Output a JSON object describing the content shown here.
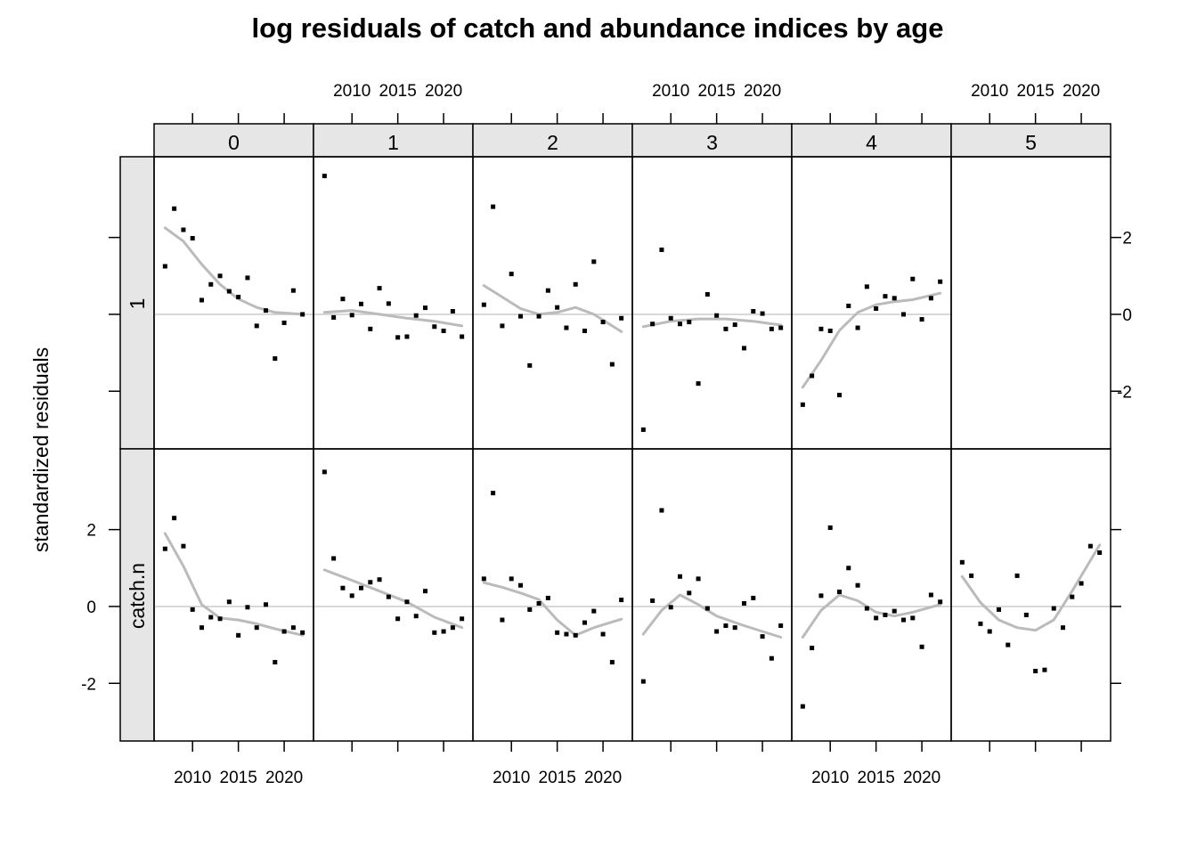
{
  "chart_data": {
    "type": "scatter",
    "title": "log residuals of catch and abundance indices by age",
    "xlabel": "",
    "ylabel": "standardized residuals",
    "xlim": [
      2005.8,
      2023.2
    ],
    "ylim": [
      -3.5,
      4.1
    ],
    "x_ticks": [
      2010,
      2015,
      2020
    ],
    "y_ticks": [
      -2,
      0,
      2
    ],
    "grid": false,
    "reference_line": 0,
    "ages": [
      "0",
      "1",
      "2",
      "3",
      "4",
      "5"
    ],
    "rows": [
      "1",
      "catch.n"
    ],
    "panels": [
      {
        "row": "1",
        "age": "0",
        "points": [
          [
            2007,
            1.25
          ],
          [
            2008,
            2.75
          ],
          [
            2009,
            2.2
          ],
          [
            2010,
            1.98
          ],
          [
            2011,
            0.37
          ],
          [
            2012,
            0.78
          ],
          [
            2013,
            1.0
          ],
          [
            2014,
            0.6
          ],
          [
            2015,
            0.45
          ],
          [
            2016,
            0.95
          ],
          [
            2017,
            -0.3
          ],
          [
            2018,
            0.1
          ],
          [
            2019,
            -1.15
          ],
          [
            2020,
            -0.22
          ],
          [
            2021,
            0.62
          ],
          [
            2022,
            0.0
          ]
        ],
        "smooth": [
          [
            2007,
            2.25
          ],
          [
            2009,
            1.9
          ],
          [
            2011,
            1.3
          ],
          [
            2013,
            0.78
          ],
          [
            2015,
            0.4
          ],
          [
            2017,
            0.18
          ],
          [
            2019,
            0.05
          ],
          [
            2022,
            0.0
          ]
        ]
      },
      {
        "row": "1",
        "age": "1",
        "points": [
          [
            2007,
            3.6
          ],
          [
            2008,
            -0.08
          ],
          [
            2009,
            0.4
          ],
          [
            2010,
            -0.02
          ],
          [
            2011,
            0.27
          ],
          [
            2012,
            -0.38
          ],
          [
            2013,
            0.68
          ],
          [
            2014,
            0.28
          ],
          [
            2015,
            -0.6
          ],
          [
            2016,
            -0.58
          ],
          [
            2017,
            -0.03
          ],
          [
            2018,
            0.17
          ],
          [
            2019,
            -0.32
          ],
          [
            2020,
            -0.43
          ],
          [
            2021,
            0.08
          ],
          [
            2022,
            -0.58
          ]
        ],
        "smooth": [
          [
            2007,
            0.05
          ],
          [
            2010,
            0.1
          ],
          [
            2013,
            0.0
          ],
          [
            2016,
            -0.1
          ],
          [
            2019,
            -0.18
          ],
          [
            2022,
            -0.3
          ]
        ]
      },
      {
        "row": "1",
        "age": "2",
        "points": [
          [
            2007,
            0.25
          ],
          [
            2008,
            2.8
          ],
          [
            2009,
            -0.3
          ],
          [
            2010,
            1.05
          ],
          [
            2011,
            -0.05
          ],
          [
            2012,
            -1.33
          ],
          [
            2013,
            -0.05
          ],
          [
            2014,
            0.62
          ],
          [
            2015,
            0.18
          ],
          [
            2016,
            -0.35
          ],
          [
            2017,
            0.78
          ],
          [
            2018,
            -0.43
          ],
          [
            2019,
            1.37
          ],
          [
            2020,
            -0.2
          ],
          [
            2021,
            -1.3
          ],
          [
            2022,
            -0.1
          ]
        ],
        "smooth": [
          [
            2007,
            0.75
          ],
          [
            2009,
            0.45
          ],
          [
            2011,
            0.15
          ],
          [
            2013,
            0.0
          ],
          [
            2015,
            0.05
          ],
          [
            2017,
            0.18
          ],
          [
            2019,
            0.0
          ],
          [
            2022,
            -0.45
          ]
        ]
      },
      {
        "row": "1",
        "age": "3",
        "points": [
          [
            2007,
            -3.0
          ],
          [
            2008,
            -0.25
          ],
          [
            2009,
            1.68
          ],
          [
            2010,
            -0.1
          ],
          [
            2011,
            -0.25
          ],
          [
            2012,
            -0.2
          ],
          [
            2013,
            -1.8
          ],
          [
            2014,
            0.52
          ],
          [
            2015,
            -0.03
          ],
          [
            2016,
            -0.38
          ],
          [
            2017,
            -0.27
          ],
          [
            2018,
            -0.88
          ],
          [
            2019,
            0.08
          ],
          [
            2020,
            0.02
          ],
          [
            2021,
            -0.38
          ],
          [
            2022,
            -0.35
          ]
        ],
        "smooth": [
          [
            2007,
            -0.32
          ],
          [
            2010,
            -0.18
          ],
          [
            2013,
            -0.12
          ],
          [
            2016,
            -0.12
          ],
          [
            2019,
            -0.18
          ],
          [
            2022,
            -0.28
          ]
        ]
      },
      {
        "row": "1",
        "age": "4",
        "points": [
          [
            2007,
            -2.35
          ],
          [
            2008,
            -1.6
          ],
          [
            2009,
            -0.38
          ],
          [
            2010,
            -0.43
          ],
          [
            2011,
            -2.1
          ],
          [
            2012,
            0.22
          ],
          [
            2013,
            -0.35
          ],
          [
            2014,
            0.72
          ],
          [
            2015,
            0.15
          ],
          [
            2016,
            0.47
          ],
          [
            2017,
            0.42
          ],
          [
            2018,
            0.0
          ],
          [
            2019,
            0.92
          ],
          [
            2020,
            -0.13
          ],
          [
            2021,
            0.42
          ],
          [
            2022,
            0.85
          ]
        ],
        "smooth": [
          [
            2007,
            -1.9
          ],
          [
            2009,
            -1.2
          ],
          [
            2011,
            -0.42
          ],
          [
            2013,
            0.05
          ],
          [
            2015,
            0.25
          ],
          [
            2017,
            0.33
          ],
          [
            2019,
            0.38
          ],
          [
            2022,
            0.55
          ]
        ]
      },
      {
        "row": "catch.n",
        "age": "0",
        "points": [
          [
            2007,
            1.5
          ],
          [
            2008,
            2.3
          ],
          [
            2009,
            1.57
          ],
          [
            2010,
            -0.08
          ],
          [
            2011,
            -0.55
          ],
          [
            2012,
            -0.28
          ],
          [
            2013,
            -0.32
          ],
          [
            2014,
            0.12
          ],
          [
            2015,
            -0.75
          ],
          [
            2016,
            -0.02
          ],
          [
            2017,
            -0.55
          ],
          [
            2018,
            0.05
          ],
          [
            2019,
            -1.45
          ],
          [
            2020,
            -0.65
          ],
          [
            2021,
            -0.55
          ],
          [
            2022,
            -0.68
          ]
        ],
        "smooth": [
          [
            2007,
            1.9
          ],
          [
            2009,
            1.05
          ],
          [
            2011,
            0.05
          ],
          [
            2013,
            -0.3
          ],
          [
            2015,
            -0.35
          ],
          [
            2017,
            -0.45
          ],
          [
            2019,
            -0.58
          ],
          [
            2022,
            -0.75
          ]
        ]
      },
      {
        "row": "catch.n",
        "age": "1",
        "points": [
          [
            2007,
            3.5
          ],
          [
            2008,
            1.25
          ],
          [
            2009,
            0.48
          ],
          [
            2010,
            0.28
          ],
          [
            2011,
            0.48
          ],
          [
            2012,
            0.63
          ],
          [
            2013,
            0.7
          ],
          [
            2014,
            0.25
          ],
          [
            2015,
            -0.32
          ],
          [
            2016,
            0.12
          ],
          [
            2017,
            -0.25
          ],
          [
            2018,
            0.4
          ],
          [
            2019,
            -0.68
          ],
          [
            2020,
            -0.65
          ],
          [
            2021,
            -0.55
          ],
          [
            2022,
            -0.32
          ]
        ],
        "smooth": [
          [
            2007,
            0.95
          ],
          [
            2010,
            0.68
          ],
          [
            2013,
            0.4
          ],
          [
            2016,
            0.12
          ],
          [
            2019,
            -0.28
          ],
          [
            2022,
            -0.55
          ]
        ]
      },
      {
        "row": "catch.n",
        "age": "2",
        "points": [
          [
            2007,
            0.72
          ],
          [
            2008,
            2.95
          ],
          [
            2009,
            -0.35
          ],
          [
            2010,
            0.72
          ],
          [
            2011,
            0.55
          ],
          [
            2012,
            -0.08
          ],
          [
            2013,
            0.08
          ],
          [
            2014,
            0.22
          ],
          [
            2015,
            -0.68
          ],
          [
            2016,
            -0.72
          ],
          [
            2017,
            -0.75
          ],
          [
            2018,
            -0.42
          ],
          [
            2019,
            -0.12
          ],
          [
            2020,
            -0.72
          ],
          [
            2021,
            -1.45
          ],
          [
            2022,
            0.17
          ]
        ],
        "smooth": [
          [
            2007,
            0.62
          ],
          [
            2009,
            0.5
          ],
          [
            2011,
            0.35
          ],
          [
            2013,
            0.18
          ],
          [
            2015,
            -0.35
          ],
          [
            2017,
            -0.75
          ],
          [
            2019,
            -0.55
          ],
          [
            2022,
            -0.33
          ]
        ]
      },
      {
        "row": "catch.n",
        "age": "3",
        "points": [
          [
            2007,
            -1.95
          ],
          [
            2008,
            0.15
          ],
          [
            2009,
            2.5
          ],
          [
            2010,
            -0.02
          ],
          [
            2011,
            0.78
          ],
          [
            2012,
            0.35
          ],
          [
            2013,
            0.72
          ],
          [
            2014,
            -0.05
          ],
          [
            2015,
            -0.65
          ],
          [
            2016,
            -0.5
          ],
          [
            2017,
            -0.55
          ],
          [
            2018,
            0.08
          ],
          [
            2019,
            0.22
          ],
          [
            2020,
            -0.78
          ],
          [
            2021,
            -1.35
          ],
          [
            2022,
            -0.5
          ]
        ],
        "smooth": [
          [
            2007,
            -0.72
          ],
          [
            2009,
            -0.1
          ],
          [
            2011,
            0.3
          ],
          [
            2013,
            0.05
          ],
          [
            2015,
            -0.25
          ],
          [
            2018,
            -0.5
          ],
          [
            2022,
            -0.8
          ]
        ]
      },
      {
        "row": "catch.n",
        "age": "4",
        "points": [
          [
            2007,
            -2.6
          ],
          [
            2008,
            -1.08
          ],
          [
            2009,
            0.28
          ],
          [
            2010,
            2.05
          ],
          [
            2011,
            0.38
          ],
          [
            2012,
            1.0
          ],
          [
            2013,
            0.55
          ],
          [
            2014,
            -0.05
          ],
          [
            2015,
            -0.3
          ],
          [
            2016,
            -0.22
          ],
          [
            2017,
            -0.12
          ],
          [
            2018,
            -0.35
          ],
          [
            2019,
            -0.3
          ],
          [
            2020,
            -1.05
          ],
          [
            2021,
            0.3
          ],
          [
            2022,
            0.12
          ]
        ],
        "smooth": [
          [
            2007,
            -0.8
          ],
          [
            2009,
            -0.1
          ],
          [
            2011,
            0.3
          ],
          [
            2013,
            0.15
          ],
          [
            2015,
            -0.15
          ],
          [
            2017,
            -0.25
          ],
          [
            2019,
            -0.15
          ],
          [
            2022,
            0.05
          ]
        ]
      },
      {
        "row": "catch.n",
        "age": "5",
        "points": [
          [
            2007,
            1.15
          ],
          [
            2008,
            0.8
          ],
          [
            2009,
            -0.45
          ],
          [
            2010,
            -0.65
          ],
          [
            2011,
            -0.08
          ],
          [
            2012,
            -1.0
          ],
          [
            2013,
            0.8
          ],
          [
            2014,
            -0.22
          ],
          [
            2015,
            -1.68
          ],
          [
            2016,
            -1.65
          ],
          [
            2017,
            -0.05
          ],
          [
            2018,
            -0.55
          ],
          [
            2019,
            0.25
          ],
          [
            2020,
            0.6
          ],
          [
            2021,
            1.57
          ],
          [
            2022,
            1.4
          ]
        ],
        "smooth": [
          [
            2007,
            0.78
          ],
          [
            2009,
            0.1
          ],
          [
            2011,
            -0.35
          ],
          [
            2013,
            -0.55
          ],
          [
            2015,
            -0.62
          ],
          [
            2017,
            -0.35
          ],
          [
            2019,
            0.4
          ],
          [
            2022,
            1.6
          ]
        ]
      }
    ],
    "colors": {
      "points": "#000000",
      "smooth": "#bbbbbb",
      "refline": "#cccccc",
      "strip": "#e6e6e6",
      "frame": "#000000"
    }
  }
}
